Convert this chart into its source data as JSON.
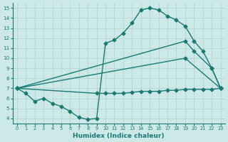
{
  "line1_x": [
    0,
    1,
    2,
    3,
    4,
    5,
    6,
    7,
    8,
    9,
    10,
    11,
    12,
    13,
    14,
    15,
    16,
    17,
    18,
    19,
    20,
    21,
    22,
    23
  ],
  "line1_y": [
    7.0,
    6.5,
    5.7,
    6.0,
    5.5,
    5.2,
    4.7,
    4.1,
    3.9,
    4.0,
    11.5,
    11.8,
    12.5,
    13.5,
    14.8,
    15.0,
    14.8,
    14.2,
    13.8,
    13.2,
    11.7,
    10.7,
    9.0,
    7.0
  ],
  "line2_x": [
    0,
    19,
    20,
    22,
    23
  ],
  "line2_y": [
    7.0,
    11.7,
    10.7,
    9.0,
    7.0
  ],
  "line3_x": [
    0,
    19,
    23
  ],
  "line3_y": [
    7.0,
    10.0,
    7.0
  ],
  "line4_x": [
    0,
    9,
    10,
    11,
    12,
    13,
    14,
    15,
    16,
    17,
    18,
    19,
    20,
    21,
    22,
    23
  ],
  "line4_y": [
    7.0,
    6.5,
    6.5,
    6.5,
    6.5,
    6.6,
    6.7,
    6.7,
    6.7,
    6.8,
    6.8,
    6.9,
    6.9,
    6.9,
    6.9,
    7.0
  ],
  "line_color": "#1a7a6e",
  "bg_color": "#cce8e8",
  "grid_color": "#b0d0d0",
  "xlabel": "Humidex (Indice chaleur)",
  "xlim": [
    -0.5,
    23.5
  ],
  "ylim": [
    3.5,
    15.5
  ],
  "xticks": [
    0,
    1,
    2,
    3,
    4,
    5,
    6,
    7,
    8,
    9,
    10,
    11,
    12,
    13,
    14,
    15,
    16,
    17,
    18,
    19,
    20,
    21,
    22,
    23
  ],
  "yticks": [
    4,
    5,
    6,
    7,
    8,
    9,
    10,
    11,
    12,
    13,
    14,
    15
  ],
  "marker": "D",
  "marker_size": 2.5,
  "line_width": 1.0
}
